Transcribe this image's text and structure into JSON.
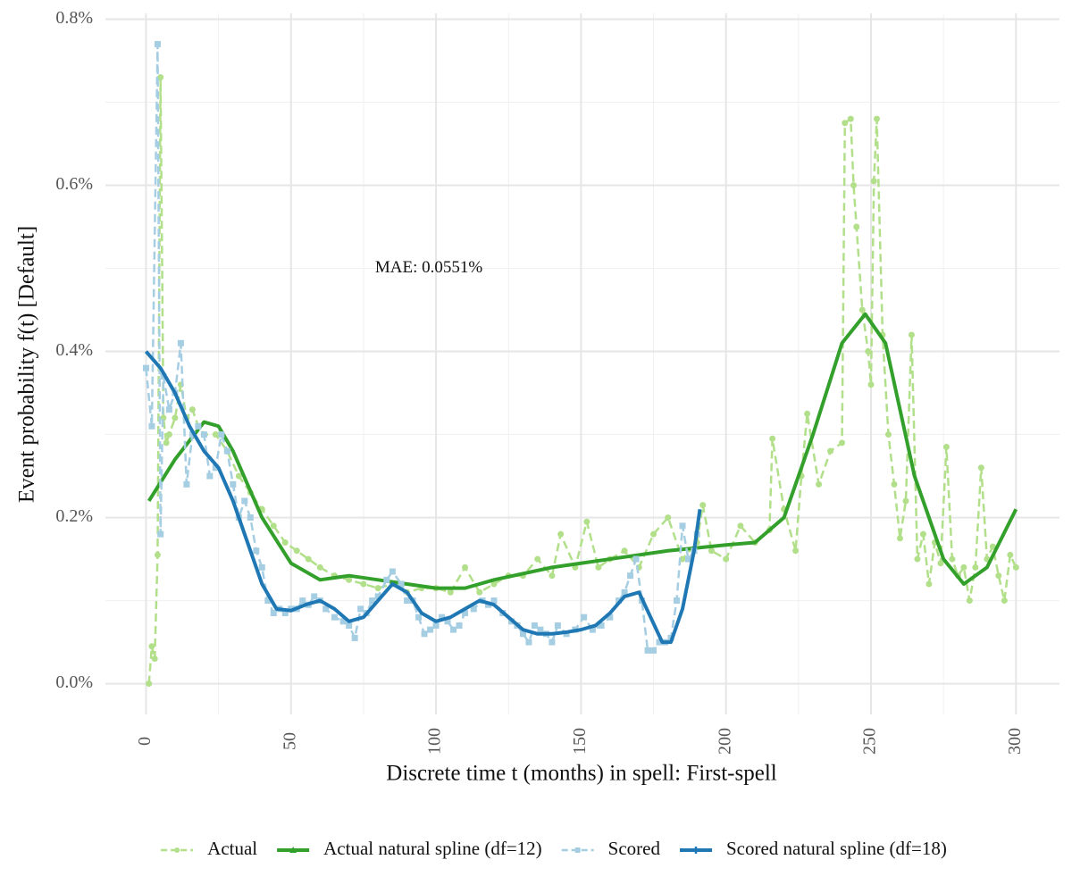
{
  "chart_data": {
    "type": "line",
    "x_label": "Discrete time t (months) in spell: First-spell",
    "y_label": "Event probability f(t) [Default]",
    "annotation": {
      "text": "MAE: 0.0551%",
      "x": 79,
      "y": 0.5
    },
    "xlim": [
      -14,
      315
    ],
    "ylim": [
      -0.037,
      0.807
    ],
    "xticks": [
      0,
      50,
      100,
      150,
      200,
      250,
      300
    ],
    "x_minor_grid": [
      25,
      75,
      125,
      175,
      225,
      275
    ],
    "yticks": [
      {
        "value": 0,
        "label": "0.0%"
      },
      {
        "value": 0.2,
        "label": "0.2%"
      },
      {
        "value": 0.4,
        "label": "0.4%"
      },
      {
        "value": 0.6,
        "label": "0.6%"
      },
      {
        "value": 0.8,
        "label": "0.8%"
      }
    ],
    "y_minor_grid": [
      0.1,
      0.3,
      0.5,
      0.7
    ],
    "grid": true,
    "legend": "bottom",
    "series": [
      {
        "name": "Actual",
        "color": "#b2df8a",
        "dashed": true,
        "marker": "circle",
        "x": [
          1,
          2,
          3,
          4,
          5,
          6,
          7,
          8,
          10,
          12,
          14,
          16,
          18,
          20,
          24,
          28,
          32,
          36,
          40,
          44,
          48,
          52,
          56,
          60,
          65,
          70,
          75,
          80,
          85,
          90,
          95,
          100,
          105,
          110,
          115,
          120,
          125,
          130,
          135,
          140,
          143,
          148,
          152,
          156,
          160,
          165,
          170,
          175,
          180,
          185,
          190,
          192,
          195,
          200,
          205,
          210,
          215,
          216,
          220,
          224,
          226,
          228,
          232,
          236,
          240,
          241,
          243,
          244,
          245,
          247,
          249,
          250,
          251,
          252,
          254,
          256,
          258,
          260,
          262,
          264,
          266,
          268,
          270,
          272,
          274,
          276,
          278,
          280,
          282,
          284,
          286,
          288,
          290,
          292,
          294,
          296,
          298,
          300
        ],
        "values": [
          0.0,
          0.045,
          0.03,
          0.155,
          0.73,
          0.32,
          0.29,
          0.3,
          0.32,
          0.36,
          0.32,
          0.33,
          0.31,
          0.3,
          0.3,
          0.28,
          0.25,
          0.23,
          0.21,
          0.19,
          0.17,
          0.16,
          0.15,
          0.14,
          0.13,
          0.125,
          0.12,
          0.115,
          0.12,
          0.11,
          0.115,
          0.115,
          0.11,
          0.14,
          0.11,
          0.12,
          0.13,
          0.13,
          0.15,
          0.13,
          0.18,
          0.14,
          0.195,
          0.14,
          0.15,
          0.16,
          0.14,
          0.18,
          0.2,
          0.15,
          0.17,
          0.215,
          0.16,
          0.15,
          0.19,
          0.17,
          0.185,
          0.295,
          0.21,
          0.16,
          0.25,
          0.325,
          0.24,
          0.28,
          0.29,
          0.675,
          0.68,
          0.6,
          0.55,
          0.45,
          0.4,
          0.36,
          0.605,
          0.68,
          0.42,
          0.3,
          0.24,
          0.175,
          0.22,
          0.42,
          0.15,
          0.18,
          0.12,
          0.17,
          0.145,
          0.285,
          0.15,
          0.13,
          0.14,
          0.1,
          0.14,
          0.26,
          0.15,
          0.165,
          0.13,
          0.1,
          0.155,
          0.14
        ]
      },
      {
        "name": "Actual natural spline (df=12)",
        "color": "#33a02c",
        "dashed": false,
        "marker": "triangle",
        "x": [
          1,
          10,
          20,
          25,
          30,
          40,
          50,
          60,
          70,
          80,
          90,
          100,
          110,
          120,
          140,
          160,
          180,
          200,
          210,
          220,
          230,
          240,
          248,
          255,
          265,
          275,
          282,
          290,
          300
        ],
        "values": [
          0.22,
          0.27,
          0.315,
          0.31,
          0.28,
          0.2,
          0.145,
          0.125,
          0.13,
          0.125,
          0.12,
          0.115,
          0.115,
          0.125,
          0.14,
          0.15,
          0.16,
          0.167,
          0.17,
          0.2,
          0.3,
          0.41,
          0.445,
          0.41,
          0.25,
          0.15,
          0.12,
          0.14,
          0.21
        ]
      },
      {
        "name": "Scored",
        "color": "#a6cee3",
        "dashed": true,
        "marker": "square",
        "x": [
          0,
          2,
          4,
          5,
          6,
          8,
          10,
          12,
          14,
          16,
          18,
          20,
          22,
          24,
          26,
          28,
          30,
          32,
          34,
          36,
          38,
          40,
          42,
          44,
          46,
          48,
          50,
          52,
          54,
          56,
          58,
          60,
          62,
          65,
          68,
          70,
          72,
          74,
          76,
          78,
          80,
          83,
          85,
          88,
          90,
          92,
          94,
          96,
          98,
          100,
          102,
          104,
          106,
          108,
          110,
          113,
          116,
          118,
          120,
          123,
          126,
          128,
          130,
          132,
          134,
          136,
          138,
          140,
          142,
          145,
          148,
          151,
          154,
          157,
          160,
          163,
          165,
          167,
          169,
          171,
          173,
          175,
          177,
          179,
          181,
          183,
          185,
          187,
          189,
          190
        ],
        "values": [
          0.38,
          0.31,
          0.77,
          0.18,
          0.37,
          0.33,
          0.35,
          0.41,
          0.24,
          0.3,
          0.31,
          0.3,
          0.25,
          0.26,
          0.3,
          0.28,
          0.24,
          0.2,
          0.22,
          0.2,
          0.16,
          0.14,
          0.1,
          0.085,
          0.09,
          0.085,
          0.09,
          0.09,
          0.1,
          0.095,
          0.105,
          0.1,
          0.09,
          0.08,
          0.075,
          0.07,
          0.055,
          0.09,
          0.085,
          0.1,
          0.105,
          0.125,
          0.135,
          0.12,
          0.1,
          0.1,
          0.08,
          0.06,
          0.065,
          0.07,
          0.08,
          0.075,
          0.065,
          0.07,
          0.085,
          0.09,
          0.1,
          0.095,
          0.1,
          0.085,
          0.075,
          0.07,
          0.06,
          0.05,
          0.07,
          0.065,
          0.06,
          0.05,
          0.07,
          0.06,
          0.065,
          0.08,
          0.065,
          0.07,
          0.08,
          0.1,
          0.11,
          0.13,
          0.15,
          0.1,
          0.04,
          0.04,
          0.05,
          0.05,
          0.055,
          0.1,
          0.19,
          0.15,
          0.16,
          0.18
        ]
      },
      {
        "name": "Scored natural spline (df=18)",
        "color": "#1f78b4",
        "dashed": false,
        "marker": "plus",
        "x": [
          0,
          5,
          10,
          15,
          20,
          25,
          30,
          35,
          40,
          45,
          50,
          55,
          60,
          65,
          70,
          75,
          80,
          85,
          90,
          95,
          100,
          105,
          110,
          115,
          120,
          125,
          130,
          135,
          140,
          145,
          150,
          155,
          160,
          165,
          170,
          174,
          178,
          181,
          185,
          189,
          191
        ],
        "values": [
          0.4,
          0.38,
          0.35,
          0.31,
          0.28,
          0.26,
          0.22,
          0.17,
          0.12,
          0.09,
          0.088,
          0.095,
          0.1,
          0.09,
          0.075,
          0.08,
          0.1,
          0.12,
          0.11,
          0.085,
          0.075,
          0.08,
          0.09,
          0.1,
          0.095,
          0.08,
          0.065,
          0.06,
          0.06,
          0.062,
          0.065,
          0.07,
          0.085,
          0.105,
          0.11,
          0.08,
          0.05,
          0.05,
          0.09,
          0.16,
          0.21
        ]
      }
    ]
  }
}
